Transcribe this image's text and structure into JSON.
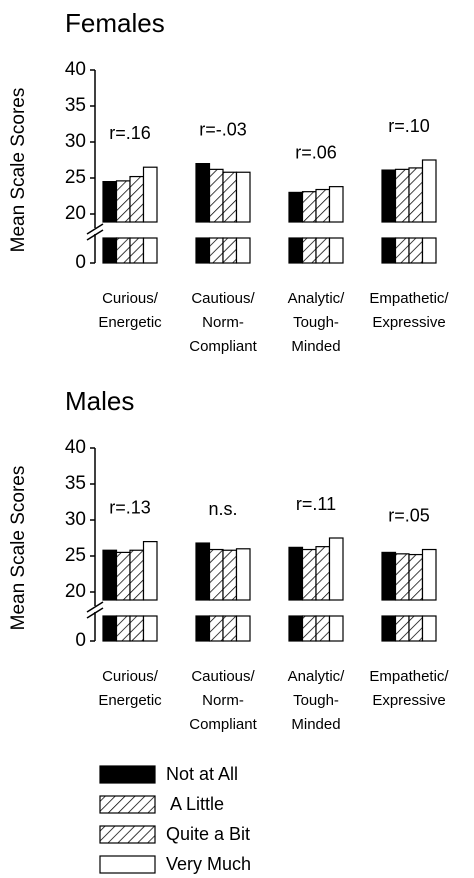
{
  "chart_data": [
    {
      "type": "bar",
      "title": "Females",
      "ylabel": "Mean Scale Scores",
      "categories": [
        [
          "Curious/",
          "Energetic"
        ],
        [
          "Cautious/",
          "Norm-",
          "Compliant"
        ],
        [
          "Analytic/",
          "Tough-",
          "Minded"
        ],
        [
          "Empathetic/",
          "Expressive"
        ]
      ],
      "annotations": [
        "r=.16",
        "r=-.03",
        "r=.06",
        "r=.10"
      ],
      "ylim": [
        0,
        40
      ],
      "yticks": [
        0,
        20,
        25,
        30,
        35,
        40
      ],
      "series": [
        {
          "values": [
            24.5,
            27.0,
            23.0,
            26.1
          ]
        },
        {
          "values": [
            24.6,
            26.2,
            23.1,
            26.2
          ]
        },
        {
          "values": [
            25.2,
            25.8,
            23.4,
            26.4
          ]
        },
        {
          "values": [
            26.5,
            25.8,
            23.8,
            27.5
          ]
        }
      ]
    },
    {
      "type": "bar",
      "title": "Males",
      "ylabel": "Mean Scale Scores",
      "categories": [
        [
          "Curious/",
          "Energetic"
        ],
        [
          "Cautious/",
          "Norm-",
          "Compliant"
        ],
        [
          "Analytic/",
          "Tough-",
          "Minded"
        ],
        [
          "Empathetic/",
          "Expressive"
        ]
      ],
      "annotations": [
        "r=.13",
        "n.s.",
        "r=.11",
        "r=.05"
      ],
      "ylim": [
        0,
        40
      ],
      "yticks": [
        0,
        20,
        25,
        30,
        35,
        40
      ],
      "series": [
        {
          "values": [
            25.8,
            26.8,
            26.2,
            25.5
          ]
        },
        {
          "values": [
            25.5,
            25.9,
            25.9,
            25.3
          ]
        },
        {
          "values": [
            25.8,
            25.8,
            26.3,
            25.2
          ]
        },
        {
          "values": [
            27.0,
            26.0,
            27.5,
            25.9
          ]
        }
      ]
    }
  ],
  "legend": [
    {
      "name": "Not at All",
      "fill": "#000000"
    },
    {
      "name": " A Little",
      "fill": "hatch"
    },
    {
      "name": "Quite a Bit",
      "fill": "hatch"
    },
    {
      "name": "Very Much",
      "fill": "#ffffff"
    }
  ]
}
